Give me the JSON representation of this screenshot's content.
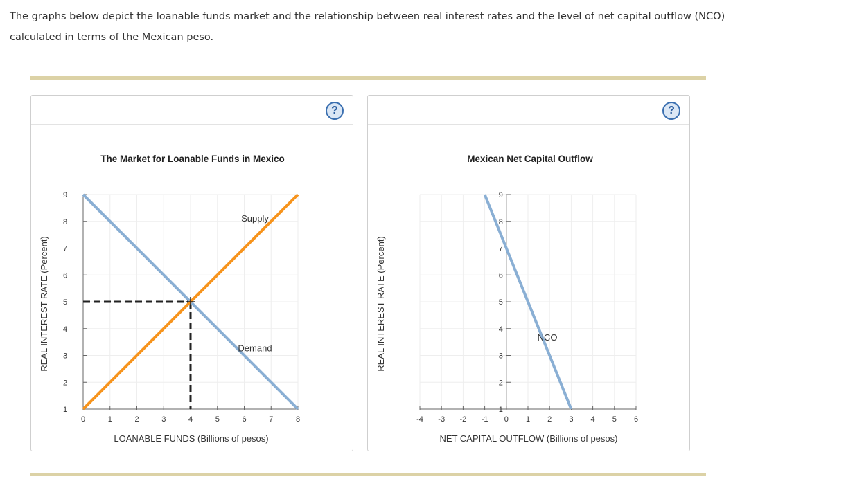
{
  "intro": {
    "line1": "The graphs below depict the loanable funds market and the relationship between real interest rates and the level of net capital outflow (NCO)",
    "line2": "calculated in terms of the Mexican peso."
  },
  "help_label": "?",
  "colors": {
    "demand": "#8aafd4",
    "supply": "#f7941d",
    "nco": "#8aafd4",
    "guide": "#222222",
    "grid": "#eeeeee",
    "rule": "#dcd2a6"
  },
  "chart_data": [
    {
      "type": "line",
      "title": "The Market for Loanable Funds in Mexico",
      "xlabel": "LOANABLE FUNDS (Billions of pesos)",
      "ylabel": "REAL INTEREST RATE (Percent)",
      "xlim": [
        0,
        8
      ],
      "ylim": [
        1,
        9
      ],
      "xticks": [
        0,
        1,
        2,
        3,
        4,
        5,
        6,
        7,
        8
      ],
      "yticks": [
        1,
        2,
        3,
        4,
        5,
        6,
        7,
        8,
        9
      ],
      "grid": true,
      "series": [
        {
          "name": "Demand",
          "x": [
            0,
            8
          ],
          "y": [
            9,
            1
          ],
          "label_at": [
            6.4,
            3.15
          ]
        },
        {
          "name": "Supply",
          "x": [
            0,
            8
          ],
          "y": [
            1,
            9
          ],
          "label_at": [
            6.4,
            8.0
          ]
        }
      ],
      "equilibrium": {
        "x": 4,
        "y": 5
      }
    },
    {
      "type": "line",
      "title": "Mexican Net Capital Outflow",
      "xlabel": "NET CAPITAL OUTFLOW (Billions of pesos)",
      "ylabel": "REAL INTEREST RATE (Percent)",
      "xlim": [
        -4,
        6
      ],
      "ylim": [
        1,
        9
      ],
      "xticks": [
        -4,
        -3,
        -2,
        -1,
        0,
        1,
        2,
        3,
        4,
        5,
        6
      ],
      "yticks": [
        1,
        2,
        3,
        4,
        5,
        6,
        7,
        8,
        9
      ],
      "grid": true,
      "series": [
        {
          "name": "NCO",
          "x": [
            -1,
            3
          ],
          "y": [
            9,
            1
          ],
          "label_at": [
            1.9,
            3.55
          ]
        }
      ]
    }
  ]
}
